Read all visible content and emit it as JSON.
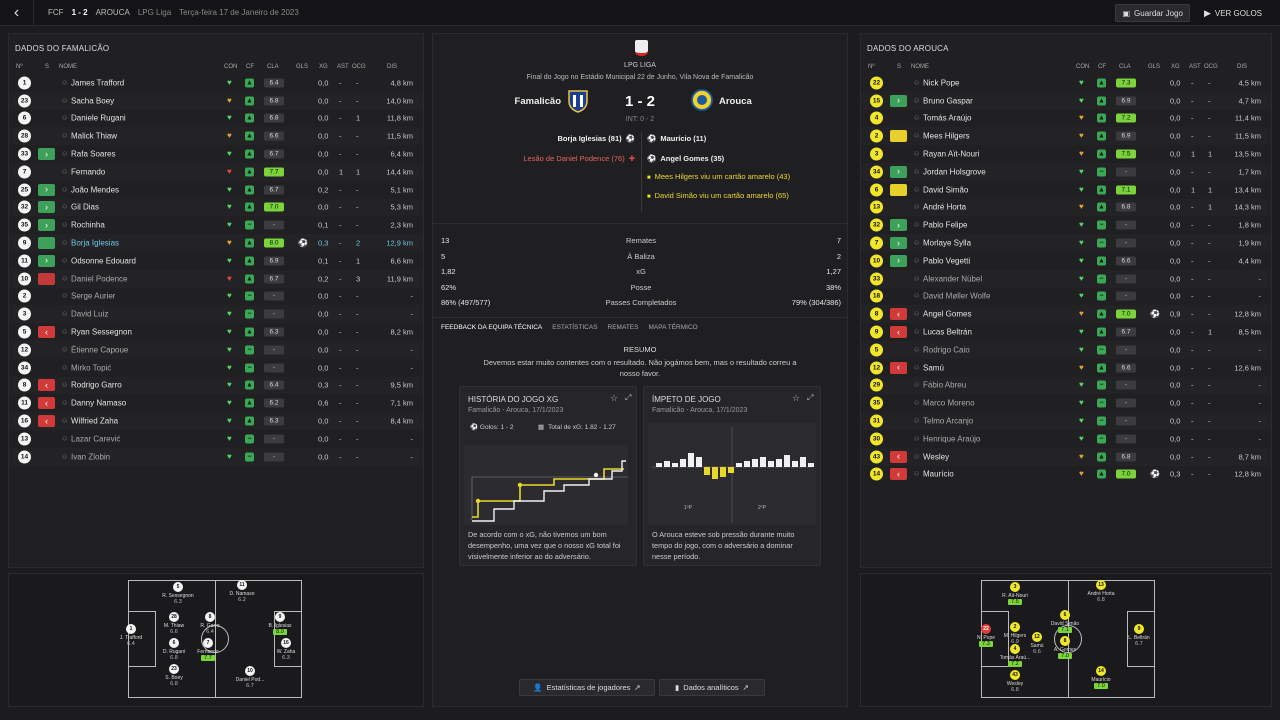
{
  "topbar": {
    "home_abbr": "FCF",
    "score": "1 - 2",
    "away_abbr": "AROUCA",
    "competition": "LPG Liga",
    "date": "Terça-feira 17 de Janeiro de 2023",
    "save_label": "Guardar Jogo",
    "goals_label": "VER GOLOS"
  },
  "columns": {
    "no": "Nº",
    "s": "S",
    "name": "NOME",
    "con": "CON",
    "cf": "CF",
    "cla": "CLA",
    "gls": "GLS",
    "xg": "XG",
    "ast": "AST",
    "ocg": "OCG",
    "dis": "DIS"
  },
  "left_panel": {
    "title": "DADOS DO FAMALICÃO",
    "players": [
      {
        "no": "1",
        "sub": "",
        "name": "James Trafford",
        "con": "g",
        "cla": "6.4",
        "best": false,
        "gls": "",
        "xg": "0,0",
        "ast": "-",
        "ocg": "-",
        "dis": "4,8 km"
      },
      {
        "no": "23",
        "sub": "",
        "name": "Sacha Boey",
        "con": "a",
        "cla": "6.8",
        "best": false,
        "gls": "",
        "xg": "0,0",
        "ast": "-",
        "ocg": "-",
        "dis": "14,0 km"
      },
      {
        "no": "6",
        "sub": "",
        "name": "Daniele Rugani",
        "con": "g",
        "cla": "6.8",
        "best": false,
        "gls": "",
        "xg": "0,0",
        "ast": "-",
        "ocg": "1",
        "dis": "11,8 km"
      },
      {
        "no": "28",
        "sub": "",
        "name": "Malick Thiaw",
        "con": "a",
        "cla": "6.6",
        "best": false,
        "gls": "",
        "xg": "0,0",
        "ast": "-",
        "ocg": "-",
        "dis": "11,5 km"
      },
      {
        "no": "33",
        "sub": ">",
        "name": "Rafa Soares",
        "con": "g",
        "cla": "6.7",
        "best": false,
        "gls": "",
        "xg": "0,0",
        "ast": "-",
        "ocg": "-",
        "dis": "6,4 km"
      },
      {
        "no": "7",
        "sub": "",
        "name": "Fernando",
        "con": "r",
        "cla": "7.7",
        "best": true,
        "gls": "",
        "xg": "0,0",
        "ast": "1",
        "ocg": "1",
        "dis": "14,4 km"
      },
      {
        "no": "25",
        "sub": ">",
        "name": "João Mendes",
        "con": "g",
        "cla": "6.7",
        "best": false,
        "gls": "",
        "xg": "0,2",
        "ast": "-",
        "ocg": "-",
        "dis": "5,1 km"
      },
      {
        "no": "32",
        "sub": ">",
        "name": "Gil Dias",
        "con": "g",
        "cla": "7.0",
        "best": true,
        "gls": "",
        "xg": "0,0",
        "ast": "-",
        "ocg": "-",
        "dis": "5,3 km"
      },
      {
        "no": "35",
        "sub": ">",
        "name": "Rochinha",
        "con": "g",
        "cla": "-",
        "best": false,
        "gls": "",
        "xg": "0,1",
        "ast": "-",
        "ocg": "-",
        "dis": "2,3 km"
      },
      {
        "no": "9",
        "sub": "tag",
        "name": "Borja Iglesias",
        "con": "a",
        "cla": "8.0",
        "best": true,
        "gls": "⚽",
        "xg": "0,3",
        "ast": "-",
        "ocg": "2",
        "dis": "12,9 km",
        "hl": true
      },
      {
        "no": "11",
        "sub": ">",
        "name": "Odsonne Edouard",
        "con": "g",
        "cla": "6.9",
        "best": false,
        "gls": "",
        "xg": "0,1",
        "ast": "-",
        "ocg": "1",
        "dis": "6,6 km"
      },
      {
        "no": "10",
        "sub": "les",
        "name": "Daniel Podence",
        "con": "r",
        "cla": "6.7",
        "best": false,
        "gls": "",
        "xg": "0,2",
        "ast": "-",
        "ocg": "3",
        "dis": "11,9 km",
        "dim": true
      },
      {
        "no": "2",
        "sub": "",
        "name": "Serge Aurier",
        "con": "g",
        "cla": "-",
        "best": false,
        "gls": "",
        "xg": "0,0",
        "ast": "-",
        "ocg": "-",
        "dis": "-",
        "dim": true
      },
      {
        "no": "3",
        "sub": "",
        "name": "David Luiz",
        "con": "g",
        "cla": "-",
        "best": false,
        "gls": "",
        "xg": "0,0",
        "ast": "-",
        "ocg": "-",
        "dis": "-",
        "dim": true
      },
      {
        "no": "5",
        "sub": "<",
        "name": "Ryan Sessegnon",
        "con": "g",
        "cla": "6.3",
        "best": false,
        "gls": "",
        "xg": "0,0",
        "ast": "-",
        "ocg": "-",
        "dis": "8,2 km"
      },
      {
        "no": "12",
        "sub": "",
        "name": "Étienne Capoue",
        "con": "g",
        "cla": "-",
        "best": false,
        "gls": "",
        "xg": "0,0",
        "ast": "-",
        "ocg": "-",
        "dis": "-",
        "dim": true
      },
      {
        "no": "34",
        "sub": "",
        "name": "Mirko Topić",
        "con": "g",
        "cla": "-",
        "best": false,
        "gls": "",
        "xg": "0,0",
        "ast": "-",
        "ocg": "-",
        "dis": "-",
        "dim": true
      },
      {
        "no": "8",
        "sub": "<",
        "name": "Rodrigo Garro",
        "con": "g",
        "cla": "6.4",
        "best": false,
        "gls": "",
        "xg": "0,3",
        "ast": "-",
        "ocg": "-",
        "dis": "9,5 km"
      },
      {
        "no": "11",
        "sub": "<",
        "name": "Danny Namaso",
        "con": "g",
        "cla": "6.2",
        "best": false,
        "gls": "",
        "xg": "0,6",
        "ast": "-",
        "ocg": "-",
        "dis": "7,1 km"
      },
      {
        "no": "16",
        "sub": "<",
        "name": "Wilfried Zaha",
        "con": "g",
        "cla": "6.3",
        "best": false,
        "gls": "",
        "xg": "0,0",
        "ast": "-",
        "ocg": "-",
        "dis": "8,4 km"
      },
      {
        "no": "13",
        "sub": "",
        "name": "Lazar Carević",
        "con": "g",
        "cla": "-",
        "best": false,
        "gls": "",
        "xg": "0,0",
        "ast": "-",
        "ocg": "-",
        "dis": "-",
        "dim": true
      },
      {
        "no": "14",
        "sub": "",
        "name": "Ivan Zlobin",
        "con": "g",
        "cla": "-",
        "best": false,
        "gls": "",
        "xg": "0,0",
        "ast": "-",
        "ocg": "-",
        "dis": "-",
        "dim": true
      }
    ],
    "pitch": [
      {
        "no": "1",
        "name": "J. Trafford",
        "rating": "6.4"
      },
      {
        "no": "5",
        "name": "R. Sessegnon",
        "rating": "6.3"
      },
      {
        "no": "28",
        "name": "M. Thiaw",
        "rating": "6.6"
      },
      {
        "no": "6",
        "name": "D. Rugani",
        "rating": "6.8"
      },
      {
        "no": "23",
        "name": "S. Boey",
        "rating": "6.8"
      },
      {
        "no": "8",
        "name": "R. Garro",
        "rating": "6.4"
      },
      {
        "no": "7",
        "name": "Fernando",
        "rating": "7.7"
      },
      {
        "no": "11",
        "name": "D. Namaso",
        "rating": "6.2"
      },
      {
        "no": "10",
        "name": "Daniel Pod...",
        "rating": "6.7"
      },
      {
        "no": "9",
        "name": "B. Iglesias",
        "rating": "8.0"
      },
      {
        "no": "16",
        "name": "W. Zaha",
        "rating": "6.3"
      }
    ]
  },
  "right_panel": {
    "title": "DADOS DO AROUCA",
    "players": [
      {
        "no": "22",
        "sub": "",
        "name": "Nick Pope",
        "con": "g",
        "cla": "7.3",
        "best": true,
        "gls": "",
        "xg": "0,0",
        "ast": "-",
        "ocg": "-",
        "dis": "4,5 km"
      },
      {
        "no": "15",
        "sub": ">",
        "name": "Bruno Gaspar",
        "con": "g",
        "cla": "6.9",
        "best": false,
        "gls": "",
        "xg": "0,0",
        "ast": "-",
        "ocg": "-",
        "dis": "4,7 km"
      },
      {
        "no": "4",
        "sub": "",
        "name": "Tomás Araújo",
        "con": "a",
        "cla": "7.2",
        "best": true,
        "gls": "",
        "xg": "0,0",
        "ast": "-",
        "ocg": "-",
        "dis": "11,4 km"
      },
      {
        "no": "2",
        "sub": "ama",
        "name": "Mees Hilgers",
        "con": "a",
        "cla": "6.9",
        "best": false,
        "gls": "",
        "xg": "0,0",
        "ast": "-",
        "ocg": "-",
        "dis": "11,5 km"
      },
      {
        "no": "3",
        "sub": "",
        "name": "Rayan Aït-Nouri",
        "con": "a",
        "cla": "7.5",
        "best": true,
        "gls": "",
        "xg": "0,0",
        "ast": "1",
        "ocg": "1",
        "dis": "13,5 km"
      },
      {
        "no": "34",
        "sub": ">",
        "name": "Jordan Holsgrove",
        "con": "g",
        "cla": "-",
        "best": false,
        "gls": "",
        "xg": "0,0",
        "ast": "-",
        "ocg": "-",
        "dis": "1,7 km"
      },
      {
        "no": "6",
        "sub": "ama",
        "name": "David Simão",
        "con": "g",
        "cla": "7.1",
        "best": true,
        "gls": "",
        "xg": "0,0",
        "ast": "1",
        "ocg": "1",
        "dis": "13,4 km"
      },
      {
        "no": "13",
        "sub": "",
        "name": "André Horta",
        "con": "a",
        "cla": "6.8",
        "best": false,
        "gls": "",
        "xg": "0,0",
        "ast": "-",
        "ocg": "1",
        "dis": "14,3 km"
      },
      {
        "no": "32",
        "sub": ">",
        "name": "Pablo Felipe",
        "con": "g",
        "cla": "-",
        "best": false,
        "gls": "",
        "xg": "0,0",
        "ast": "-",
        "ocg": "-",
        "dis": "1,8 km"
      },
      {
        "no": "7",
        "sub": ">",
        "name": "Morlaye Sylla",
        "con": "g",
        "cla": "-",
        "best": false,
        "gls": "",
        "xg": "0,0",
        "ast": "-",
        "ocg": "-",
        "dis": "1,9 km"
      },
      {
        "no": "10",
        "sub": ">",
        "name": "Pablo Vegetti",
        "con": "g",
        "cla": "6.6",
        "best": false,
        "gls": "",
        "xg": "0,0",
        "ast": "-",
        "ocg": "-",
        "dis": "4,4 km"
      },
      {
        "no": "33",
        "sub": "",
        "name": "Alexander Nübel",
        "con": "g",
        "cla": "-",
        "best": false,
        "gls": "",
        "xg": "0,0",
        "ast": "-",
        "ocg": "-",
        "dis": "-",
        "dim": true
      },
      {
        "no": "18",
        "sub": "",
        "name": "David Møller Wolfe",
        "con": "g",
        "cla": "-",
        "best": false,
        "gls": "",
        "xg": "0,0",
        "ast": "-",
        "ocg": "-",
        "dis": "-",
        "dim": true
      },
      {
        "no": "8",
        "sub": "<",
        "name": "Angel Gomes",
        "con": "a",
        "cla": "7.0",
        "best": true,
        "gls": "⚽",
        "xg": "0,9",
        "ast": "-",
        "ocg": "-",
        "dis": "12,8 km"
      },
      {
        "no": "9",
        "sub": "<",
        "name": "Lucas Beltrán",
        "con": "g",
        "cla": "6.7",
        "best": false,
        "gls": "",
        "xg": "0,0",
        "ast": "-",
        "ocg": "1",
        "dis": "8,5 km"
      },
      {
        "no": "5",
        "sub": "",
        "name": "Rodrigo Caio",
        "con": "g",
        "cla": "-",
        "best": false,
        "gls": "",
        "xg": "0,0",
        "ast": "-",
        "ocg": "-",
        "dis": "-",
        "dim": true
      },
      {
        "no": "12",
        "sub": "<",
        "name": "Samú",
        "con": "a",
        "cla": "6.6",
        "best": false,
        "gls": "",
        "xg": "0,0",
        "ast": "-",
        "ocg": "-",
        "dis": "12,6 km"
      },
      {
        "no": "29",
        "sub": "",
        "name": "Fábio Abreu",
        "con": "g",
        "cla": "-",
        "best": false,
        "gls": "",
        "xg": "0,0",
        "ast": "-",
        "ocg": "-",
        "dis": "-",
        "dim": true
      },
      {
        "no": "35",
        "sub": "",
        "name": "Marco Moreno",
        "con": "g",
        "cla": "-",
        "best": false,
        "gls": "",
        "xg": "0,0",
        "ast": "-",
        "ocg": "-",
        "dis": "-",
        "dim": true
      },
      {
        "no": "31",
        "sub": "",
        "name": "Telmo Arcanjo",
        "con": "g",
        "cla": "-",
        "best": false,
        "gls": "",
        "xg": "0,0",
        "ast": "-",
        "ocg": "-",
        "dis": "-",
        "dim": true
      },
      {
        "no": "30",
        "sub": "",
        "name": "Henrique Araújo",
        "con": "g",
        "cla": "-",
        "best": false,
        "gls": "",
        "xg": "0,0",
        "ast": "-",
        "ocg": "-",
        "dis": "-",
        "dim": true
      },
      {
        "no": "43",
        "sub": "<",
        "name": "Wesley",
        "con": "a",
        "cla": "6.8",
        "best": false,
        "gls": "",
        "xg": "0,0",
        "ast": "-",
        "ocg": "-",
        "dis": "8,7 km"
      },
      {
        "no": "14",
        "sub": "<",
        "name": "Maurício",
        "con": "a",
        "cla": "7.0",
        "best": true,
        "gls": "⚽",
        "xg": "0,3",
        "ast": "-",
        "ocg": "-",
        "dis": "12,8 km"
      }
    ],
    "pitch": [
      {
        "no": "22",
        "name": "N. Pope",
        "rating": "7.3",
        "r": true
      },
      {
        "no": "3",
        "name": "R. Aït-Nouri",
        "rating": "7.5"
      },
      {
        "no": "2",
        "name": "M. Hilgers",
        "rating": "6.9"
      },
      {
        "no": "4",
        "name": "Tomás Araú...",
        "rating": "7.2"
      },
      {
        "no": "43",
        "name": "Wesley",
        "rating": "6.8"
      },
      {
        "no": "6",
        "name": "David Simão",
        "rating": "7.1"
      },
      {
        "no": "12",
        "name": "Samú",
        "rating": "6.6"
      },
      {
        "no": "8",
        "name": "A. Gomes",
        "rating": "7.0"
      },
      {
        "no": "13",
        "name": "André Horta",
        "rating": "6.8"
      },
      {
        "no": "14",
        "name": "Maurício",
        "rating": "7.0"
      },
      {
        "no": "9",
        "name": "L. Beltrán",
        "rating": "6.7"
      }
    ]
  },
  "match": {
    "league": "LPG LIGA",
    "venue": "Final do Jogo no Estádio Municipal 22 de Junho, Vila Nova de Famalicão",
    "home": "Famalicão",
    "away": "Arouca",
    "score": "1 - 2",
    "halftime": "INT: 0 - 2",
    "events_home": [
      {
        "text": "Borja Iglesias (81)",
        "icon": "⚽",
        "type": "goal"
      },
      {
        "text": "Lesão de Daniel Podence (76)",
        "icon": "✚",
        "type": "injury"
      }
    ],
    "events_away": [
      {
        "text": "Maurício (11)",
        "icon": "⚽",
        "type": "goal"
      },
      {
        "text": "Angel Gomes (35)",
        "icon": "⚽",
        "type": "goal"
      },
      {
        "text": "Mees Hilgers viu um cartão amarelo (43)",
        "icon": "■",
        "type": "card"
      },
      {
        "text": "David Simão viu um cartão amarelo (65)",
        "icon": "■",
        "type": "card"
      }
    ]
  },
  "stats": [
    {
      "home": "13",
      "label": "Remates",
      "away": "7"
    },
    {
      "home": "5",
      "label": "À Baliza",
      "away": "2"
    },
    {
      "home": "1,82",
      "label": "xG",
      "away": "1,27"
    },
    {
      "home": "62%",
      "label": "Posse",
      "away": "38%"
    },
    {
      "home": "86% (497/577)",
      "label": "Passes Completados",
      "away": "79% (304/386)"
    }
  ],
  "tabs": [
    "FEEDBACK DA EQUIPA TÉCNICA",
    "ESTATÍSTICAS",
    "REMATES",
    "MAPA TÉRMICO"
  ],
  "feedback": {
    "title": "RESUMO",
    "text": "Devemos estar muito contentes com o resultado. Não jogámos bem, mas o resultado correu a nosso favor."
  },
  "xg_card": {
    "title": "HISTÓRIA DO JOGO XG",
    "subtitle": "Famalicão - Arouca, 17/1/2023",
    "goals": "Golos: 1 - 2",
    "xg_total": "Total de xG: 1.82 - 1.27",
    "desc": "De acordo com o xG, não tivemos um bom desempenho, uma vez que o nosso xG total foi visivelmente inferior ao do adversário."
  },
  "momentum_card": {
    "title": "ÍMPETO DE JOGO",
    "subtitle": "Famalicão - Arouca, 17/1/2023",
    "first_half": "1ºP",
    "second_half": "2ºP",
    "desc": "O Arouca esteve sob pressão durante muito tempo do jogo, com o adversário a dominar nesse período."
  },
  "buttons": {
    "player_stats": "Estatísticas de jogadores",
    "analytics": "Dados analíticos"
  }
}
